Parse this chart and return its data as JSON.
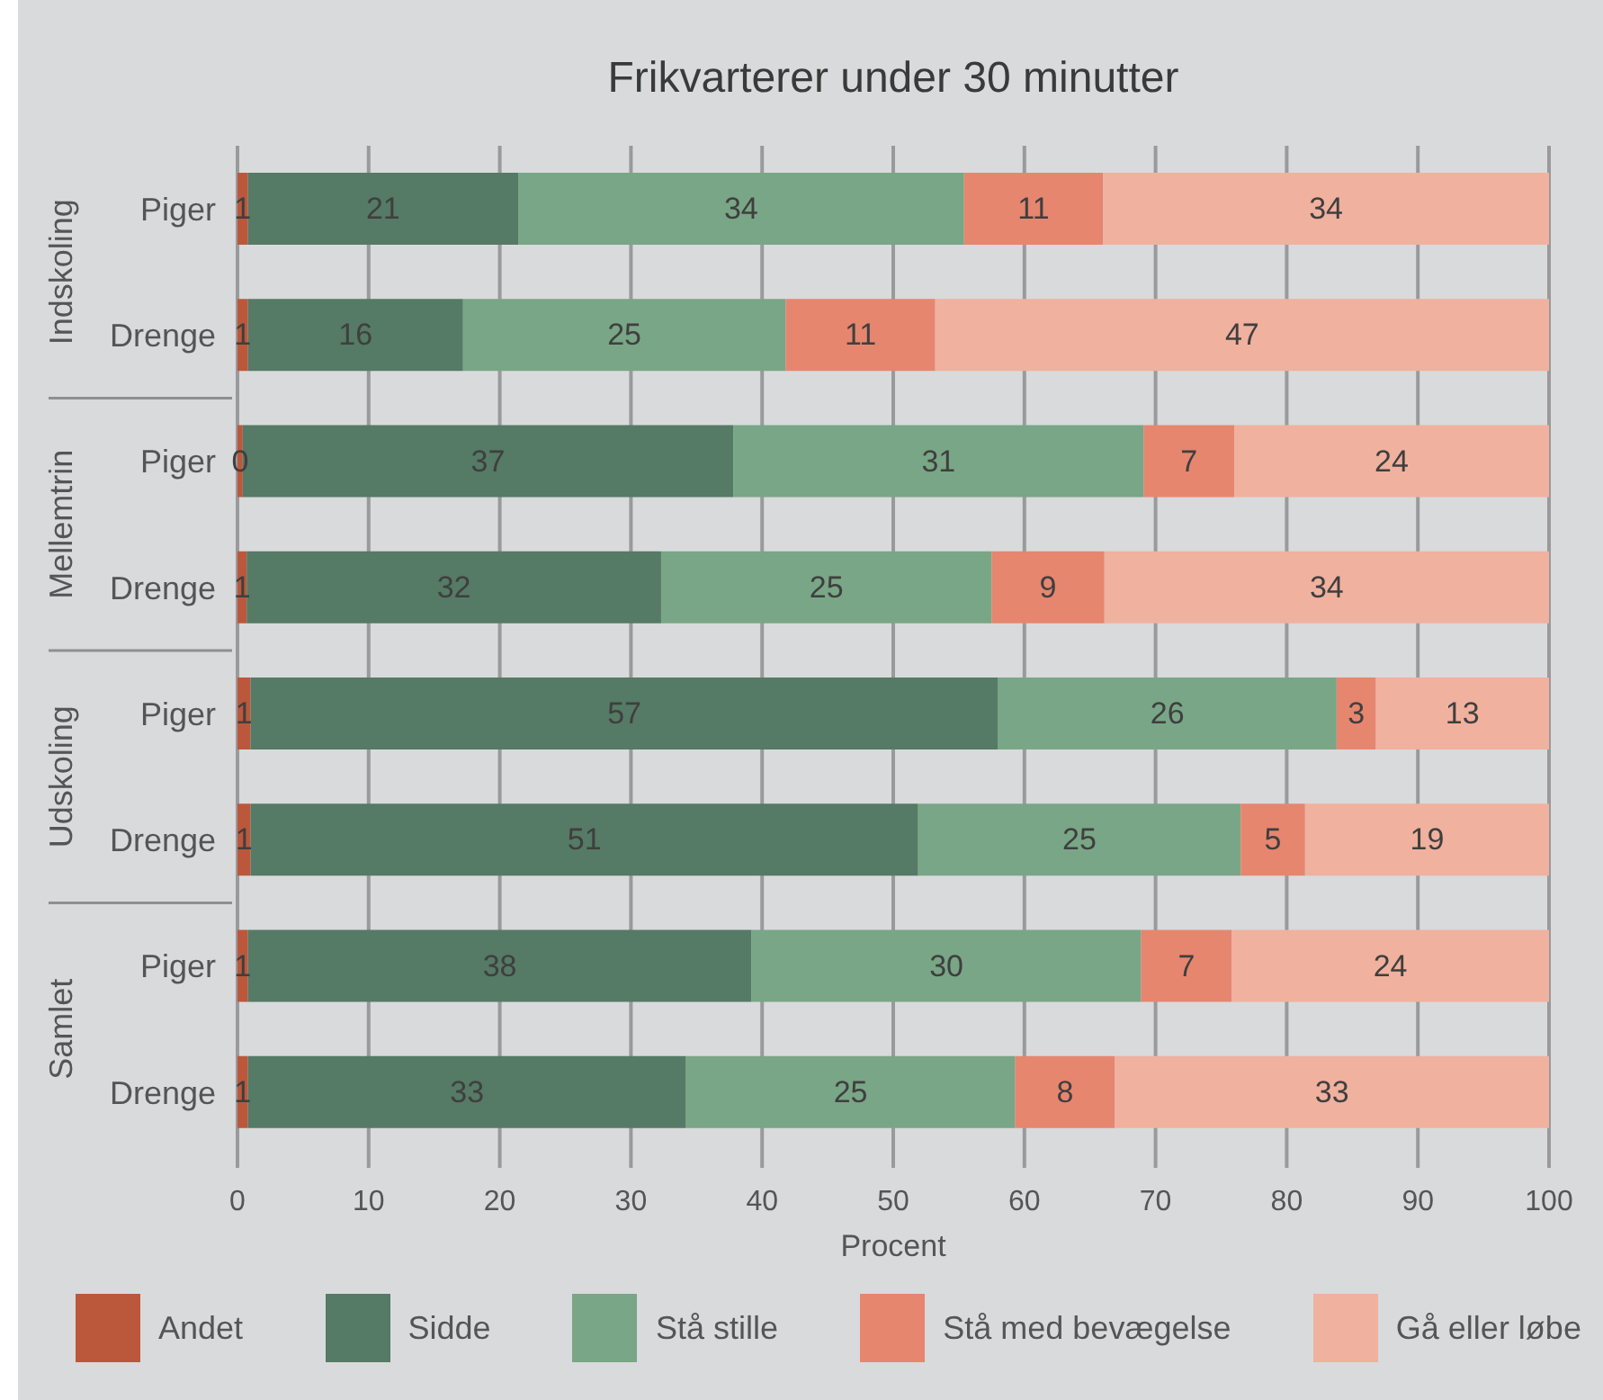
{
  "chart_data": {
    "type": "bar",
    "orientation": "horizontal",
    "stacked": true,
    "title": "Frikvarterer under 30 minutter",
    "xlabel": "Procent",
    "categories": [
      "Piger",
      "Drenge",
      "Piger",
      "Drenge",
      "Piger",
      "Drenge",
      "Piger",
      "Drenge"
    ],
    "annotations": [
      "Indskoling",
      "Mellemtrin",
      "Udskoling",
      "Samlet"
    ],
    "series": [
      {
        "name": "Andet",
        "color": "#bb583b",
        "values": [
          0.8,
          0.8,
          0.4,
          0.7,
          1.0,
          1.0,
          0.8,
          0.8
        ],
        "value_labels": [
          "1",
          "1",
          "0",
          "1",
          "1",
          "1",
          "1",
          "1"
        ]
      },
      {
        "name": "Sidde",
        "color": "#557a65",
        "values": [
          20.6,
          16.4,
          37.4,
          31.6,
          57.0,
          50.9,
          38.4,
          33.4
        ],
        "value_labels": [
          "21",
          "16",
          "37",
          "32",
          "57",
          "51",
          "38",
          "33"
        ]
      },
      {
        "name": "Stå stille",
        "color": "#79a686",
        "values": [
          34.0,
          24.6,
          31.3,
          25.2,
          25.8,
          24.6,
          29.7,
          25.1
        ],
        "value_labels": [
          "34",
          "25",
          "31",
          "25",
          "26",
          "25",
          "30",
          "25"
        ]
      },
      {
        "name": "Stå med bevægelse",
        "color": "#e6866f",
        "values": [
          10.6,
          11.4,
          6.9,
          8.6,
          3.0,
          4.9,
          6.9,
          7.6
        ],
        "value_labels": [
          "11",
          "11",
          "7",
          "9",
          "3",
          "5",
          "7",
          "8"
        ]
      },
      {
        "name": "Gå eller løbe",
        "color": "#f0b19e",
        "values": [
          34.0,
          46.8,
          24.0,
          33.9,
          13.2,
          18.6,
          24.2,
          33.1
        ],
        "value_labels": [
          "34",
          "47",
          "24",
          "34",
          "13",
          "19",
          "24",
          "33"
        ]
      }
    ],
    "xlim": [
      0,
      100
    ],
    "xticks": [
      0,
      10,
      20,
      30,
      40,
      50,
      60,
      70,
      80,
      90,
      100
    ],
    "grid": "x",
    "legend": "bottom"
  }
}
